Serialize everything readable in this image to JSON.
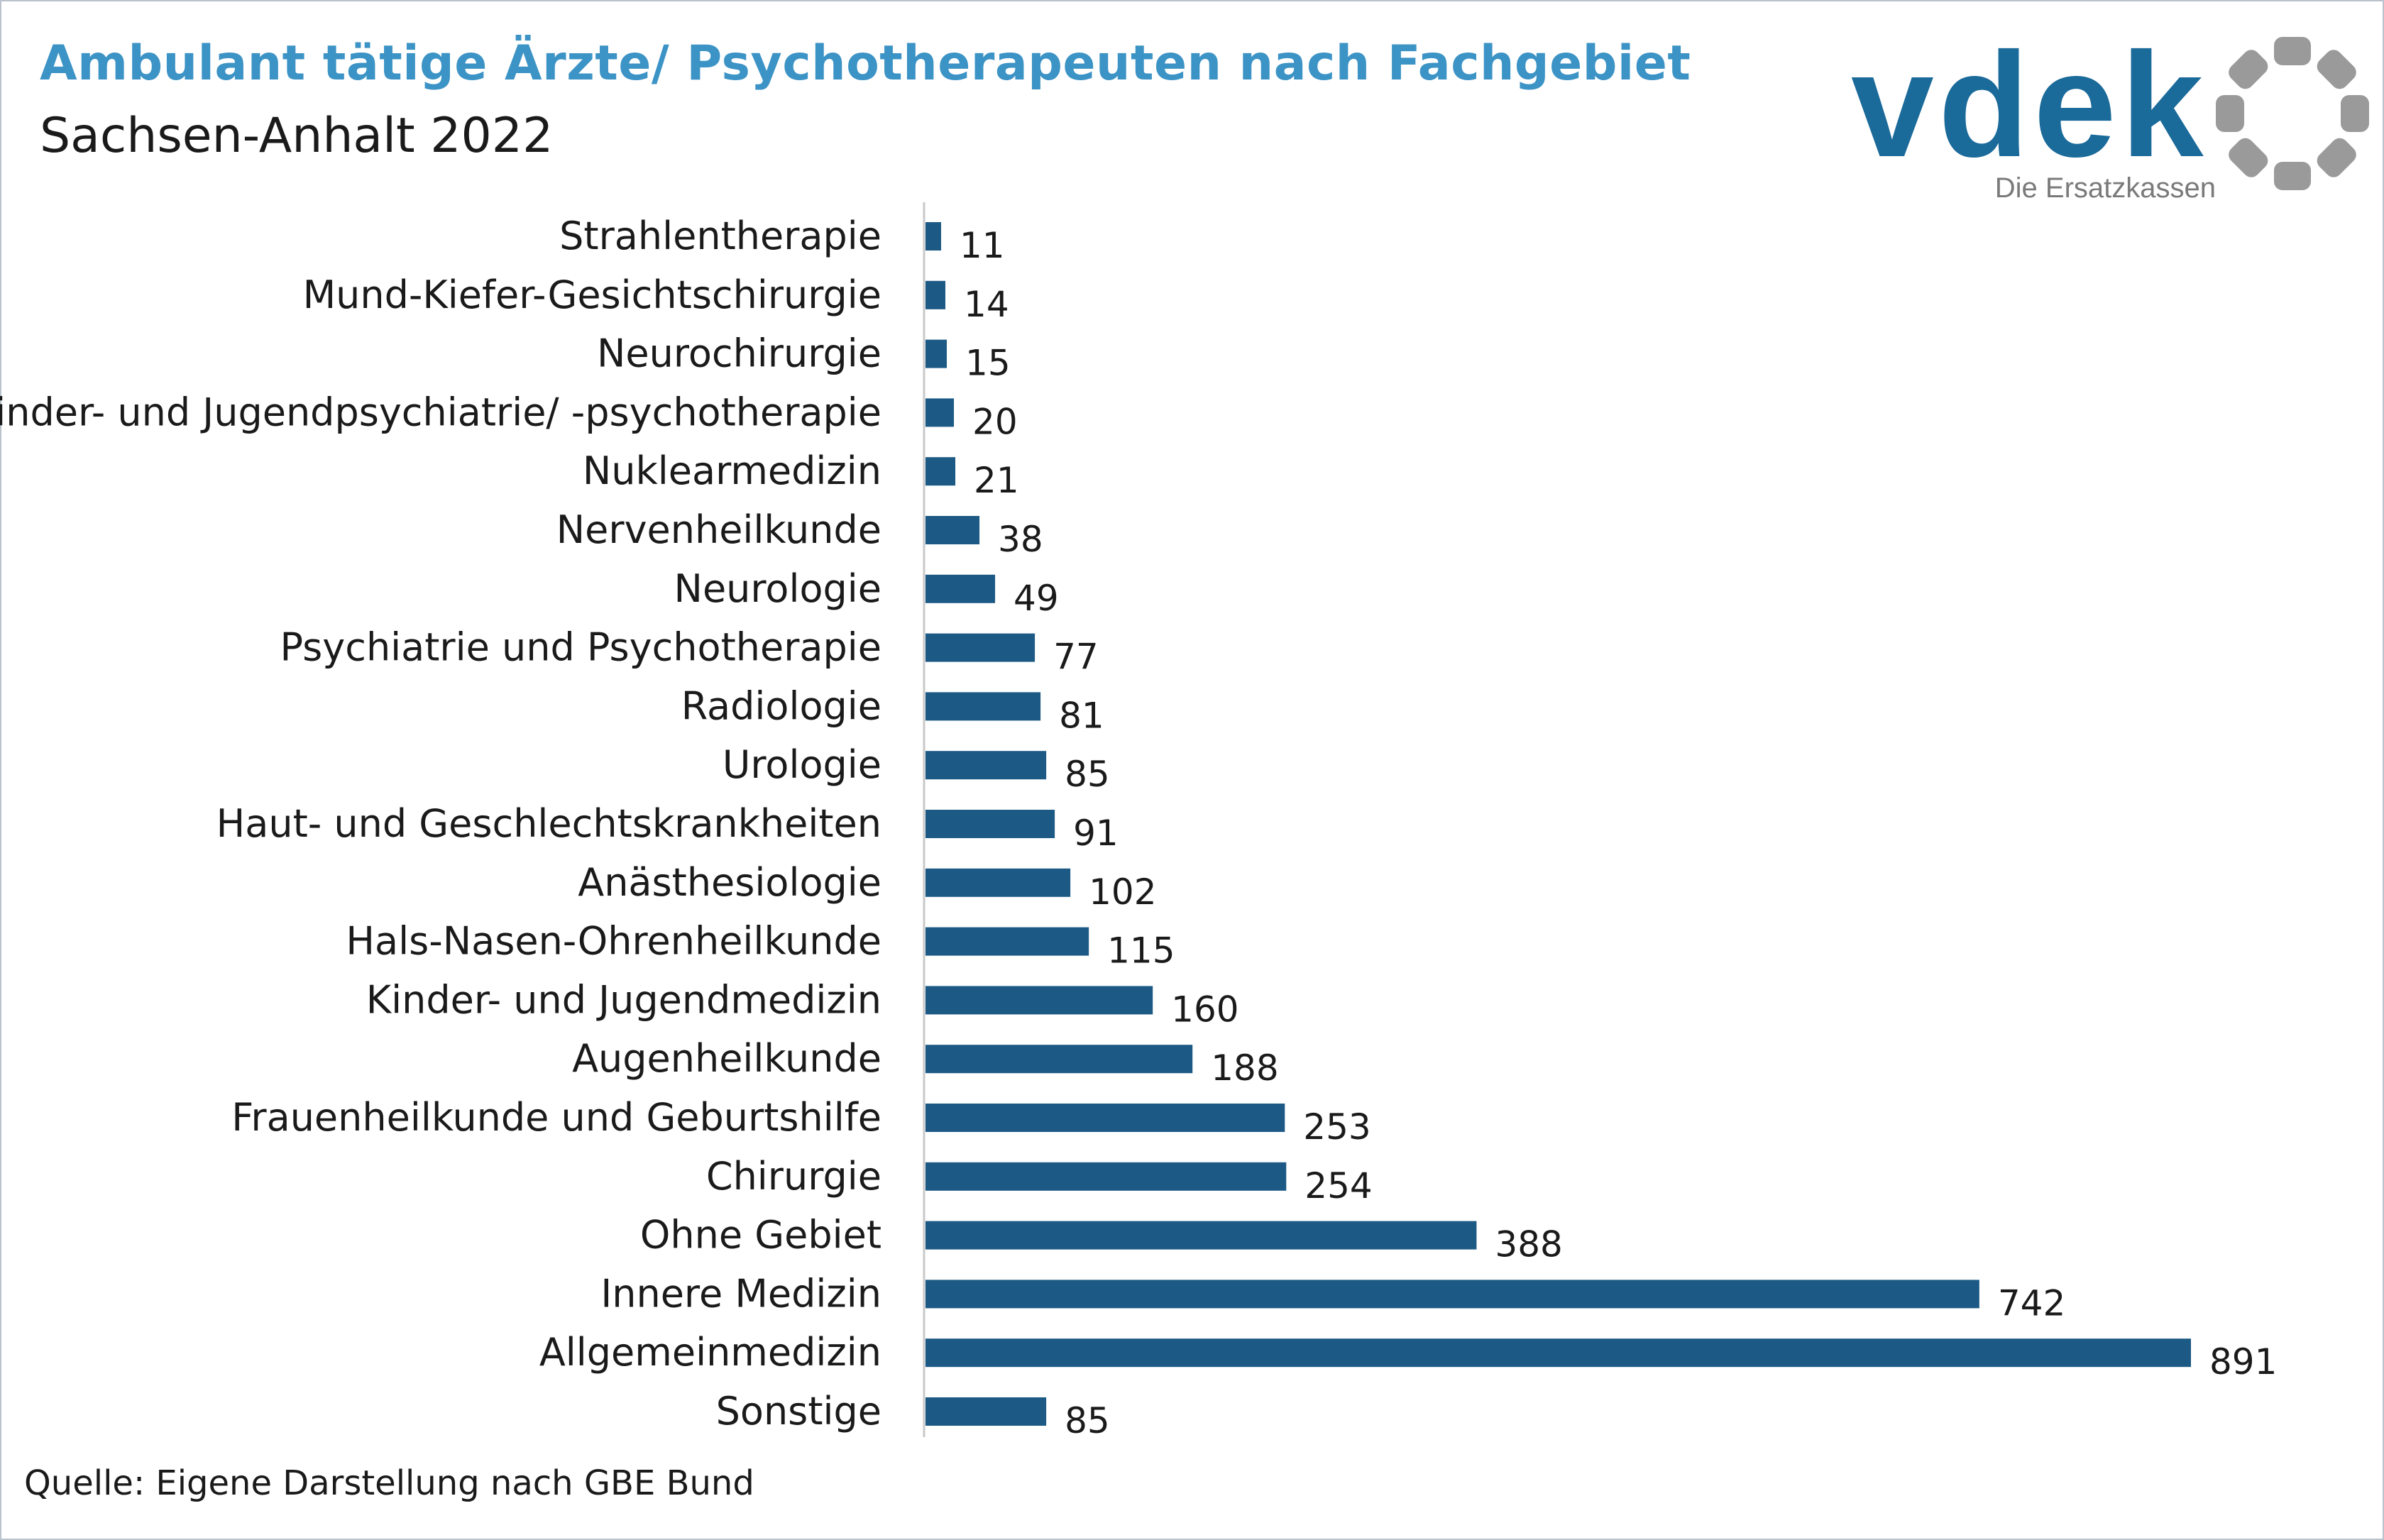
{
  "header": {
    "title": "Ambulant tätige Ärzte/ Psychotherapeuten nach Fachgebiet",
    "subtitle": "Sachsen-Anhalt 2022"
  },
  "logo": {
    "wordmark": "vdek",
    "tagline": "Die Ersatzkassen",
    "wordmark_color": "#1a6a9a",
    "tagline_color": "#7a7a7a",
    "ring_color": "#9a9a9a",
    "icon": "vdek-ring-logo"
  },
  "footer": {
    "source": "Quelle: Eigene Darstellung nach GBE Bund"
  },
  "chart_data": {
    "type": "bar",
    "orientation": "horizontal",
    "title": "Ambulant tätige Ärzte/ Psychotherapeuten nach Fachgebiet",
    "subtitle": "Sachsen-Anhalt 2022",
    "xlabel": "",
    "ylabel": "",
    "xlim": [
      0,
      891
    ],
    "grid": false,
    "legend": "none",
    "bar_color": "#1c5a85",
    "categories": [
      "Strahlentherapie",
      "Mund-Kiefer-Gesichtschirurgie",
      "Neurochirurgie",
      "Kinder- und Jugendpsychiatrie/ -psychotherapie",
      "Nuklearmedizin",
      "Nervenheilkunde",
      "Neurologie",
      "Psychiatrie und Psychotherapie",
      "Radiologie",
      "Urologie",
      "Haut- und Geschlechtskrankheiten",
      "Anästhesiologie",
      "Hals-Nasen-Ohrenheilkunde",
      "Kinder- und Jugendmedizin",
      "Augenheilkunde",
      "Frauenheilkunde und Geburtshilfe",
      "Chirurgie",
      "Ohne Gebiet",
      "Innere Medizin",
      "Allgemeinmedizin",
      "Sonstige"
    ],
    "values": [
      11,
      14,
      15,
      20,
      21,
      38,
      49,
      77,
      81,
      85,
      91,
      102,
      115,
      160,
      188,
      253,
      254,
      388,
      742,
      891,
      85
    ]
  }
}
